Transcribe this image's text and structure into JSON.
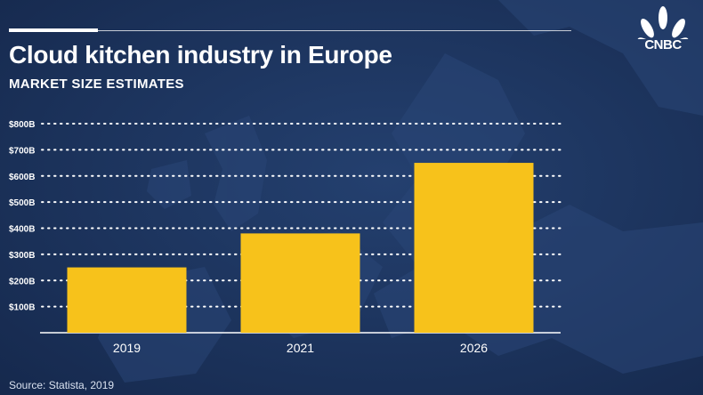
{
  "header": {
    "title": "Cloud kitchen industry in Europe",
    "subtitle": "MARKET SIZE ESTIMATES"
  },
  "logo": {
    "text": "CNBC",
    "icon": "peacock-logo-icon"
  },
  "source": "Source: Statista, 2019",
  "colors": {
    "bar": "#f7c21b",
    "background": "#1a2f58",
    "gridline": "#ffffff",
    "text": "#ffffff"
  },
  "chart_data": {
    "type": "bar",
    "title": "Cloud kitchen industry in Europe",
    "subtitle": "MARKET SIZE ESTIMATES",
    "xlabel": "",
    "ylabel": "",
    "categories": [
      "2019",
      "2021",
      "2026"
    ],
    "values": [
      250,
      380,
      650
    ],
    "unit": "billion USD",
    "ylim": [
      0,
      800
    ],
    "yticks": [
      100,
      200,
      300,
      400,
      500,
      600,
      700,
      800
    ],
    "ytick_labels": [
      "$100B",
      "$200B",
      "$300B",
      "$400B",
      "$500B",
      "$600B",
      "$700B",
      "$800B"
    ],
    "grid": true,
    "legend": "none"
  }
}
